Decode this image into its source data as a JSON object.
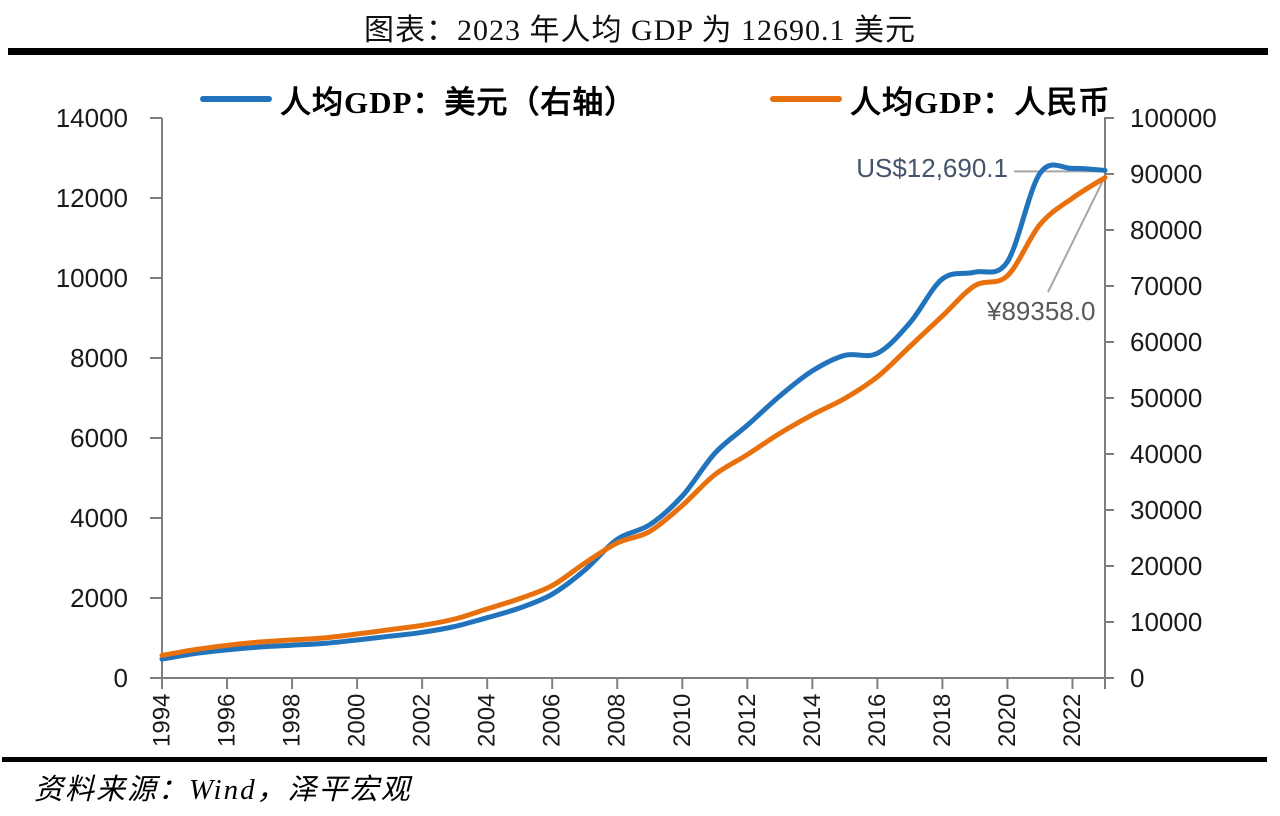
{
  "page": {
    "title": "图表：2023 年人均 GDP 为 12690.1 美元",
    "source": "资料来源：Wind，泽平宏观"
  },
  "legend": {
    "items": [
      {
        "label": "人均GDP：美元（右轴）",
        "color": "#2173BC"
      },
      {
        "label": "人均GDP：人民币",
        "color": "#E8710D"
      }
    ]
  },
  "annotations": {
    "usd_label": "US$12,690.1",
    "rmb_label": "¥89358.0"
  },
  "chart_data": {
    "type": "line",
    "title": "图表：2023 年人均 GDP 为 12690.1 美元",
    "legend_position": "top",
    "grid": false,
    "axis_color": "#7F7F7F",
    "annotation_colors": {
      "usd": "#44546A",
      "rmb": "#595959",
      "leader": "#A6A6A6"
    },
    "x": [
      1994,
      1995,
      1996,
      1997,
      1998,
      1999,
      2000,
      2001,
      2002,
      2003,
      2004,
      2005,
      2006,
      2007,
      2008,
      2009,
      2010,
      2011,
      2012,
      2013,
      2014,
      2015,
      2016,
      2017,
      2018,
      2019,
      2020,
      2021,
      2022,
      2023
    ],
    "x_tick_years": [
      1994,
      1996,
      1998,
      2000,
      2002,
      2004,
      2006,
      2008,
      2010,
      2012,
      2014,
      2016,
      2018,
      2020,
      2022
    ],
    "left_axis": {
      "min": 0,
      "max": 14000,
      "label_values": [
        14000,
        12000,
        10000,
        8000,
        6000,
        4000,
        2000,
        0
      ]
    },
    "right_axis": {
      "min": 0,
      "max": 100000,
      "label_values": [
        100000,
        90000,
        80000,
        70000,
        60000,
        50000,
        40000,
        30000,
        20000,
        10000,
        0
      ]
    },
    "series": [
      {
        "name": "人均GDP：美元（右轴）",
        "axis": "left",
        "color": "#2173BC",
        "values": [
          473.1,
          609.7,
          703.1,
          774.5,
          820.9,
          865.3,
          951.2,
          1044.3,
          1141.8,
          1288.6,
          1508.7,
          1749.2,
          2095.9,
          2695.4,
          3468.3,
          3832.2,
          4550.5,
          5618.1,
          6316.9,
          7050.6,
          7678.6,
          8066.9,
          8116.6,
          8879.4,
          9976.7,
          10143.8,
          10408.7,
          12617.5,
          12741.0,
          12690.1
        ]
      },
      {
        "name": "人均GDP：人民币",
        "axis": "right",
        "color": "#E8710D",
        "values": [
          4044,
          5046,
          5846,
          6420,
          6796,
          7159,
          7858,
          8622,
          9398,
          10542,
          12336,
          14185,
          16500,
          20494,
          24100,
          26180,
          30808,
          36302,
          39874,
          43684,
          47005,
          49922,
          53783,
          59201,
          64644,
          70078,
          71828,
          80976,
          85698,
          89358
        ]
      }
    ]
  }
}
